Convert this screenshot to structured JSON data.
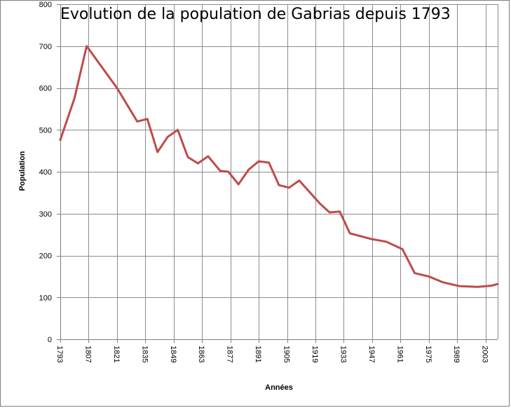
{
  "chart_data": {
    "type": "line",
    "title": "Evolution de la population de Gabrias depuis 1793",
    "xlabel": "Années",
    "ylabel": "Population",
    "ylim": [
      0,
      800
    ],
    "xlim": [
      1793,
      2009
    ],
    "grid": true,
    "y_ticks": [
      0,
      100,
      200,
      300,
      400,
      500,
      600,
      700,
      800
    ],
    "x_ticks": [
      1793,
      1807,
      1821,
      1835,
      1849,
      1863,
      1877,
      1891,
      1905,
      1919,
      1933,
      1947,
      1961,
      1975,
      1989,
      2003
    ],
    "series": [
      {
        "color": "#be4b48",
        "x": [
          1793,
          1800,
          1806,
          1821,
          1831,
          1836,
          1841,
          1846,
          1851,
          1856,
          1861,
          1866,
          1872,
          1876,
          1881,
          1886,
          1891,
          1896,
          1901,
          1906,
          1911,
          1921,
          1926,
          1931,
          1936,
          1946,
          1954,
          1962,
          1968,
          1975,
          1982,
          1990,
          1999,
          2006,
          2009
        ],
        "values": [
          476,
          575,
          700,
          600,
          520,
          526,
          447,
          483,
          500,
          435,
          420,
          437,
          402,
          400,
          370,
          405,
          425,
          422,
          368,
          362,
          379,
          325,
          303,
          305,
          253,
          240,
          233,
          215,
          158,
          150,
          136,
          127,
          125,
          128,
          132
        ]
      }
    ]
  }
}
